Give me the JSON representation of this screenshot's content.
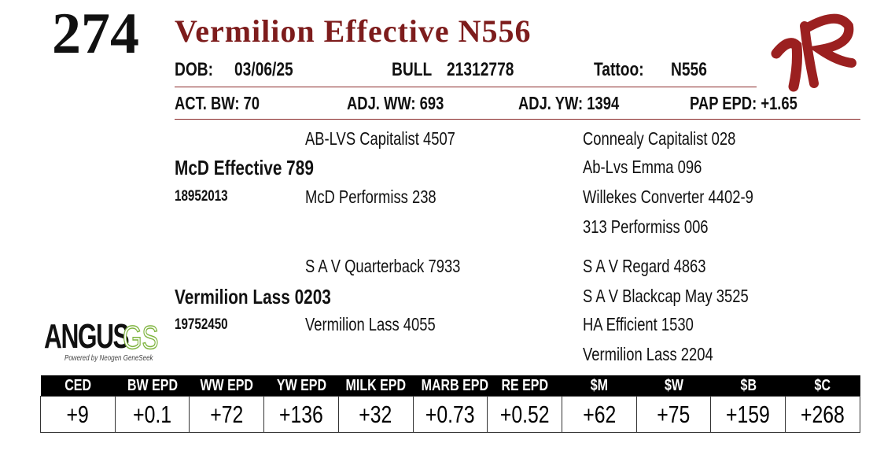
{
  "header": {
    "lot": "274",
    "name": "Vermilion Effective N556",
    "info_row": {
      "dob_label": "DOB:",
      "dob": "03/06/25",
      "sex": "BULL",
      "registration": "21312778",
      "tattoo_label": "Tattoo:",
      "tattoo": "N556"
    },
    "weights": [
      "ACT. BW: 70",
      "ADJ. WW: 693",
      "ADJ. YW: 1394",
      "PAP EPD: +1.65"
    ]
  },
  "pedigree": {
    "sire": {
      "name": "McD Effective 789",
      "registration": "18952013",
      "sire": "AB-LVS Capitalist 4507",
      "dam": "McD Performiss 238",
      "sire_sire": "Connealy Capitalist 028",
      "sire_dam": "Ab-Lvs Emma 096",
      "dam_sire": "Willekes Converter 4402-9",
      "dam_dam": "313 Performiss 006"
    },
    "dam": {
      "name": "Vermilion Lass 0203",
      "registration": "19752450",
      "sire": "S A V Quarterback 7933",
      "dam": "Vermilion Lass 4055",
      "sire_sire": "S A V Regard 4863",
      "sire_dam": "S A V Blackcap May 3525",
      "dam_sire": "HA Efficient 1530",
      "dam_dam": "Vermilion Lass 2204"
    }
  },
  "logo": {
    "main": "ANGUS",
    "suffix": "GS",
    "tagline": "Powered by Neogen GeneSeek"
  },
  "epd_table": {
    "headers": [
      "CED",
      "BW EPD",
      "WW EPD",
      "YW EPD",
      "MILK EPD",
      "MARB EPD",
      "RE EPD",
      "$M",
      "$W",
      "$B",
      "$C"
    ],
    "values": [
      "+9",
      "+0.1",
      "+72",
      "+136",
      "+32",
      "+0.73",
      "+0.52",
      "+62",
      "+75",
      "+159",
      "+268"
    ]
  }
}
